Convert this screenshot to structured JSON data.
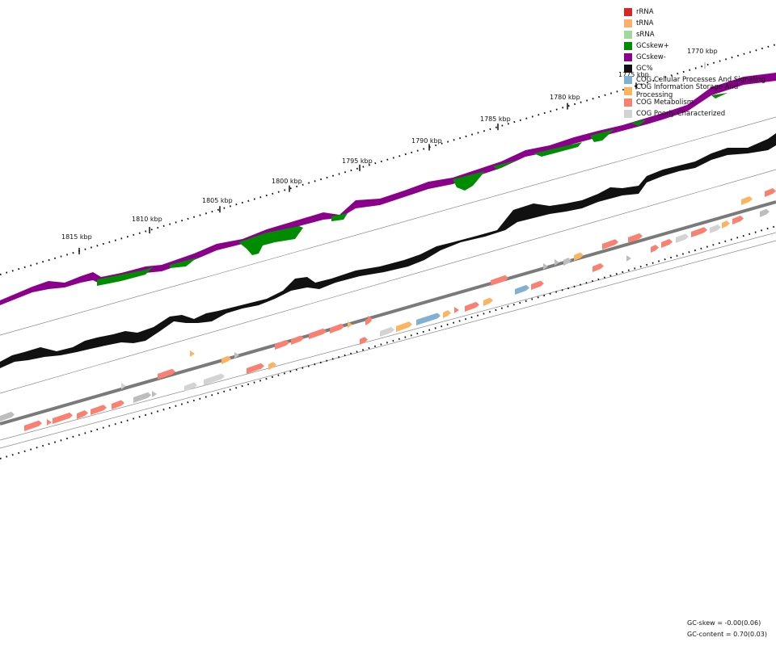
{
  "legend": [
    {
      "label": "rRNA",
      "color": "#d62728"
    },
    {
      "label": "tRNA",
      "color": "#fdae6b"
    },
    {
      "label": "sRNA",
      "color": "#a1d99b"
    },
    {
      "label": "GCskew+",
      "color": "#008c00"
    },
    {
      "label": "GCskew-",
      "color": "#8b008b"
    },
    {
      "label": "GC%",
      "color": "#111111"
    },
    {
      "label": "COG Cellular Processes And Signaling",
      "color": "#80b1d3"
    },
    {
      "label": "COG Information Storage And Processing",
      "color": "#fdb462"
    },
    {
      "label": "COG Metabolism",
      "color": "#fa8072"
    },
    {
      "label": "COG Poorly Characterized",
      "color": "#d3d3d3"
    }
  ],
  "ticks": [
    "1770 kbp",
    "1775 kbp",
    "1780 kbp",
    "1785 kbp",
    "1790 kbp",
    "1795 kbp",
    "1800 kbp",
    "1805 kbp",
    "1810 kbp",
    "1815 kbp"
  ],
  "stats": {
    "gc_skew": "GC-skew = -0.00(0.06)",
    "gc_content": "GC-content = 0.70(0.03)"
  }
}
